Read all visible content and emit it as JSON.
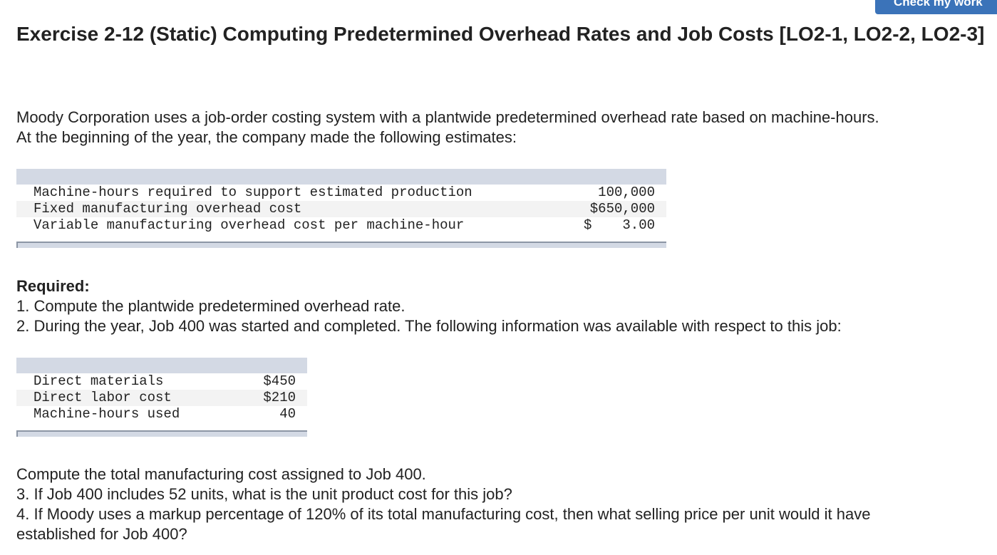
{
  "header": {
    "check_button_label": "Check my work"
  },
  "title": "Exercise 2-12 (Static) Computing Predetermined Overhead Rates and Job Costs [LO2-1, LO2-2, LO2-3]",
  "intro": {
    "line1": "Moody Corporation uses a job-order costing system with a plantwide predetermined overhead rate based on machine-hours.",
    "line2": "At the beginning of the year, the company made the following estimates:"
  },
  "estimates_table": {
    "rows": [
      {
        "label": "Machine-hours required to support estimated production",
        "value": "100,000"
      },
      {
        "label": "Fixed manufacturing overhead cost",
        "value": "$650,000"
      },
      {
        "label": "Variable manufacturing overhead cost per machine-hour",
        "currency": "$",
        "value": "3.00"
      }
    ]
  },
  "required": {
    "heading": "Required:",
    "item1": "1. Compute the plantwide predetermined overhead rate.",
    "item2": "2. During the year, Job 400 was started and completed. The following information was available with respect to this job:"
  },
  "job_table": {
    "rows": [
      {
        "label": "Direct materials",
        "value": "$450"
      },
      {
        "label": "Direct labor cost",
        "value": "$210"
      },
      {
        "label": "Machine-hours used",
        "value": "40"
      }
    ]
  },
  "questions": {
    "compute_total": "Compute the total manufacturing cost assigned to Job 400.",
    "item3": "3. If Job 400 includes 52 units, what is the unit product cost for this job?",
    "item4_line1": "4. If Moody uses a markup percentage of 120% of its total manufacturing cost, then what selling price per unit would it have",
    "item4_line2": "established for Job 400?"
  }
}
